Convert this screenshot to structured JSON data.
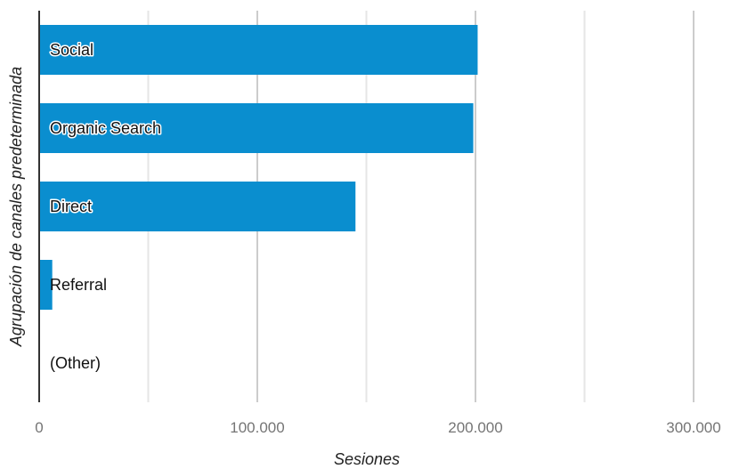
{
  "chart_data": {
    "type": "bar",
    "orientation": "horizontal",
    "categories": [
      "Social",
      "Organic Search",
      "Direct",
      "Referral",
      "(Other)"
    ],
    "values": [
      201000,
      199000,
      145000,
      6000,
      0
    ],
    "xlabel": "Sesiones",
    "ylabel": "Agrupación de canales predeterminada",
    "xlim": [
      0,
      320000
    ],
    "xticks": [
      "0",
      "100.000",
      "200.000",
      "300.000"
    ],
    "grid": true,
    "legend": "none",
    "bar_color": "#0a8ecf"
  }
}
